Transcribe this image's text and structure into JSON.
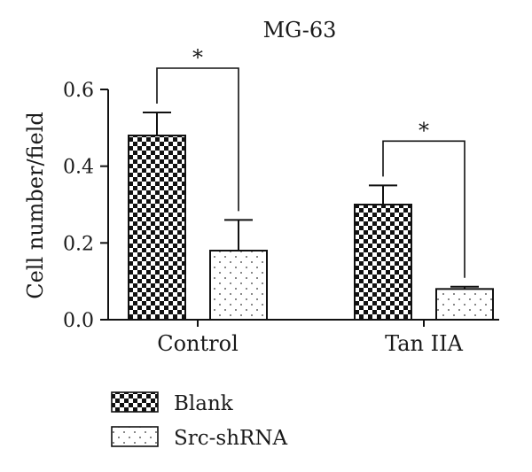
{
  "chart_data": {
    "type": "bar",
    "title": "MG-63",
    "ylabel": "Cell number/field",
    "xlabel": "",
    "categories": [
      "Control",
      "Tan IIA"
    ],
    "ylim": [
      0,
      0.6
    ],
    "yticks": [
      0.0,
      0.2,
      0.4,
      0.6
    ],
    "ytick_labels": [
      "0.0",
      "0.2",
      "0.4",
      "0.6"
    ],
    "series": [
      {
        "name": "Blank",
        "values": [
          0.48,
          0.3
        ],
        "errors": [
          0.06,
          0.05
        ],
        "pattern": "checker-dense",
        "color": "#111111"
      },
      {
        "name": "Src-shRNA",
        "values": [
          0.18,
          0.08
        ],
        "errors": [
          0.08,
          0.006
        ],
        "pattern": "sparse-dots",
        "color": "#111111"
      }
    ],
    "significance": [
      {
        "category": "Control",
        "label": "*"
      },
      {
        "category": "Tan IIA",
        "label": "*"
      }
    ],
    "legend_position": "bottom-left",
    "grid": false
  }
}
